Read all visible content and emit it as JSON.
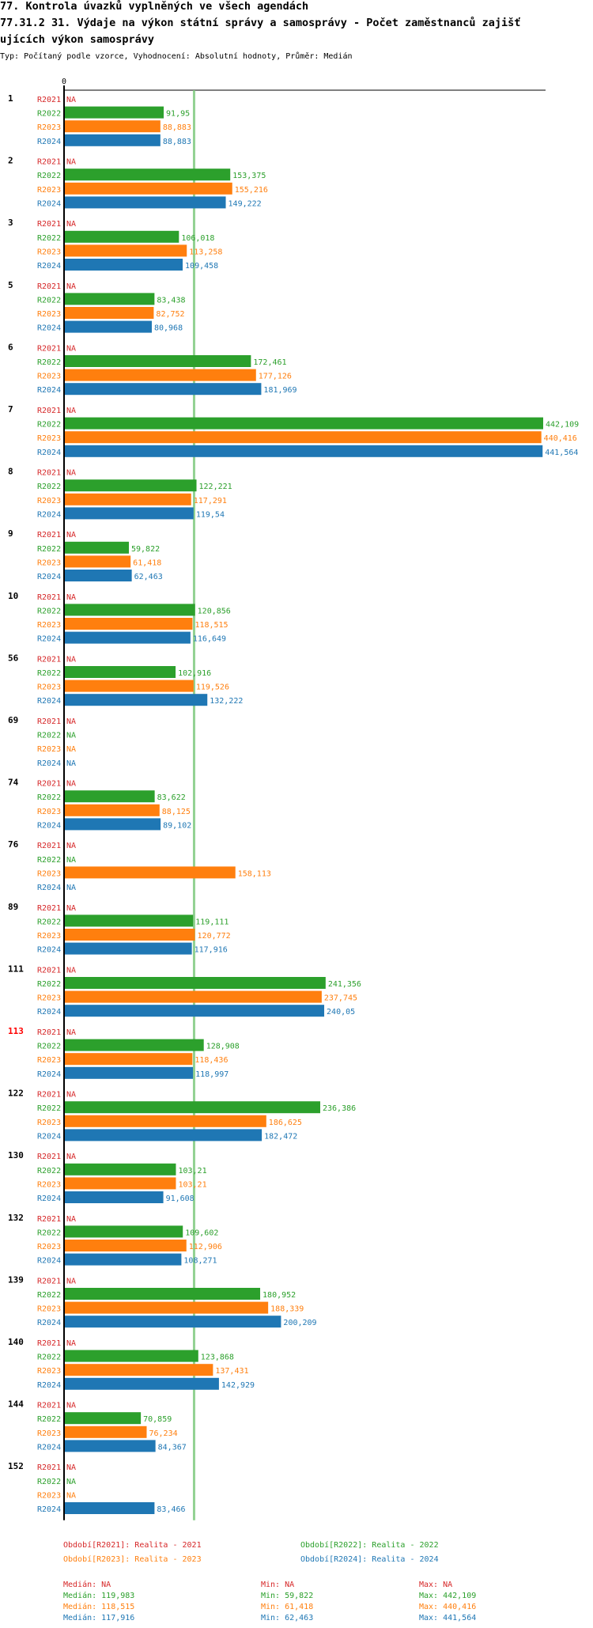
{
  "header": {
    "line1": "77. Kontrola úvazků vyplněných ve všech agendách",
    "line2": "77.31.2 31. Výdaje na výkon státní správy a samosprávy - Počet zaměstnanců zajišť",
    "line3": "ujících výkon samosprávy",
    "subtitle": "Typ: Počítaný podle vzorce, Vyhodnocení: Absolutní hodnoty, Průměr: Medián"
  },
  "colors": {
    "R2021": "#d62728",
    "R2022": "#2ca02c",
    "R2023": "#ff7f0e",
    "R2024": "#1f77b4",
    "median": "#7fc97f",
    "highlight": "#ff0000"
  },
  "chart_data": {
    "type": "bar",
    "orientation": "horizontal",
    "axis_zero_label": "0",
    "xlim": [
      0,
      442109
    ],
    "median_line": 119983,
    "na_label": "NA",
    "series_names": [
      "R2021",
      "R2022",
      "R2023",
      "R2024"
    ],
    "groups": [
      {
        "label": "1",
        "values": [
          null,
          91950,
          88883,
          88883
        ],
        "labels": [
          "NA",
          "91,95",
          "88,883",
          "88,883"
        ]
      },
      {
        "label": "2",
        "values": [
          null,
          153375,
          155216,
          149222
        ],
        "labels": [
          "NA",
          "153,375",
          "155,216",
          "149,222"
        ]
      },
      {
        "label": "3",
        "values": [
          null,
          106018,
          113258,
          109458
        ],
        "labels": [
          "NA",
          "106,018",
          "113,258",
          "109,458"
        ]
      },
      {
        "label": "5",
        "values": [
          null,
          83438,
          82752,
          80968
        ],
        "labels": [
          "NA",
          "83,438",
          "82,752",
          "80,968"
        ]
      },
      {
        "label": "6",
        "values": [
          null,
          172461,
          177126,
          181969
        ],
        "labels": [
          "NA",
          "172,461",
          "177,126",
          "181,969"
        ]
      },
      {
        "label": "7",
        "values": [
          null,
          442109,
          440416,
          441564
        ],
        "labels": [
          "NA",
          "442,109",
          "440,416",
          "441,564"
        ]
      },
      {
        "label": "8",
        "values": [
          null,
          122221,
          117291,
          119540
        ],
        "labels": [
          "NA",
          "122,221",
          "117,291",
          "119,54"
        ]
      },
      {
        "label": "9",
        "values": [
          null,
          59822,
          61418,
          62463
        ],
        "labels": [
          "NA",
          "59,822",
          "61,418",
          "62,463"
        ]
      },
      {
        "label": "10",
        "values": [
          null,
          120856,
          118515,
          116649
        ],
        "labels": [
          "NA",
          "120,856",
          "118,515",
          "116,649"
        ]
      },
      {
        "label": "56",
        "values": [
          null,
          102916,
          119526,
          132222
        ],
        "labels": [
          "NA",
          "102,916",
          "119,526",
          "132,222"
        ]
      },
      {
        "label": "69",
        "values": [
          null,
          null,
          null,
          null
        ],
        "labels": [
          "NA",
          "NA",
          "NA",
          "NA"
        ]
      },
      {
        "label": "74",
        "values": [
          null,
          83622,
          88125,
          89102
        ],
        "labels": [
          "NA",
          "83,622",
          "88,125",
          "89,102"
        ]
      },
      {
        "label": "76",
        "values": [
          null,
          null,
          158113,
          null
        ],
        "labels": [
          "NA",
          "NA",
          "158,113",
          "NA"
        ]
      },
      {
        "label": "89",
        "values": [
          null,
          119111,
          120772,
          117916
        ],
        "labels": [
          "NA",
          "119,111",
          "120,772",
          "117,916"
        ]
      },
      {
        "label": "111",
        "values": [
          null,
          241356,
          237745,
          240050
        ],
        "labels": [
          "NA",
          "241,356",
          "237,745",
          "240,05"
        ]
      },
      {
        "label": "113",
        "highlight": true,
        "values": [
          null,
          128908,
          118436,
          118997
        ],
        "labels": [
          "NA",
          "128,908",
          "118,436",
          "118,997"
        ]
      },
      {
        "label": "122",
        "values": [
          null,
          236386,
          186625,
          182472
        ],
        "labels": [
          "NA",
          "236,386",
          "186,625",
          "182,472"
        ]
      },
      {
        "label": "130",
        "values": [
          null,
          103210,
          103210,
          91608
        ],
        "labels": [
          "NA",
          "103,21",
          "103,21",
          "91,608"
        ]
      },
      {
        "label": "132",
        "values": [
          null,
          109602,
          112906,
          108271
        ],
        "labels": [
          "NA",
          "109,602",
          "112,906",
          "108,271"
        ]
      },
      {
        "label": "139",
        "values": [
          null,
          180952,
          188339,
          200209
        ],
        "labels": [
          "NA",
          "180,952",
          "188,339",
          "200,209"
        ]
      },
      {
        "label": "140",
        "values": [
          null,
          123868,
          137431,
          142929
        ],
        "labels": [
          "NA",
          "123,868",
          "137,431",
          "142,929"
        ]
      },
      {
        "label": "144",
        "values": [
          null,
          70859,
          76234,
          84367
        ],
        "labels": [
          "NA",
          "70,859",
          "76,234",
          "84,367"
        ]
      },
      {
        "label": "152",
        "values": [
          null,
          null,
          null,
          83466
        ],
        "labels": [
          "NA",
          "NA",
          "NA",
          "83,466"
        ]
      }
    ],
    "legend": [
      {
        "series": "R2021",
        "text": "Období[R2021]: Realita - 2021"
      },
      {
        "series": "R2022",
        "text": "Období[R2022]: Realita - 2022"
      },
      {
        "series": "R2023",
        "text": "Období[R2023]: Realita - 2023"
      },
      {
        "series": "R2024",
        "text": "Období[R2024]: Realita - 2024"
      }
    ],
    "stats": [
      {
        "series": "R2021",
        "median": "Medián: NA",
        "min": "Min: NA",
        "max": "Max: NA"
      },
      {
        "series": "R2022",
        "median": "Medián: 119,983",
        "min": "Min: 59,822",
        "max": "Max: 442,109"
      },
      {
        "series": "R2023",
        "median": "Medián: 118,515",
        "min": "Min: 61,418",
        "max": "Max: 440,416"
      },
      {
        "series": "R2024",
        "median": "Medián: 117,916",
        "min": "Min: 62,463",
        "max": "Max: 441,564"
      }
    ]
  }
}
